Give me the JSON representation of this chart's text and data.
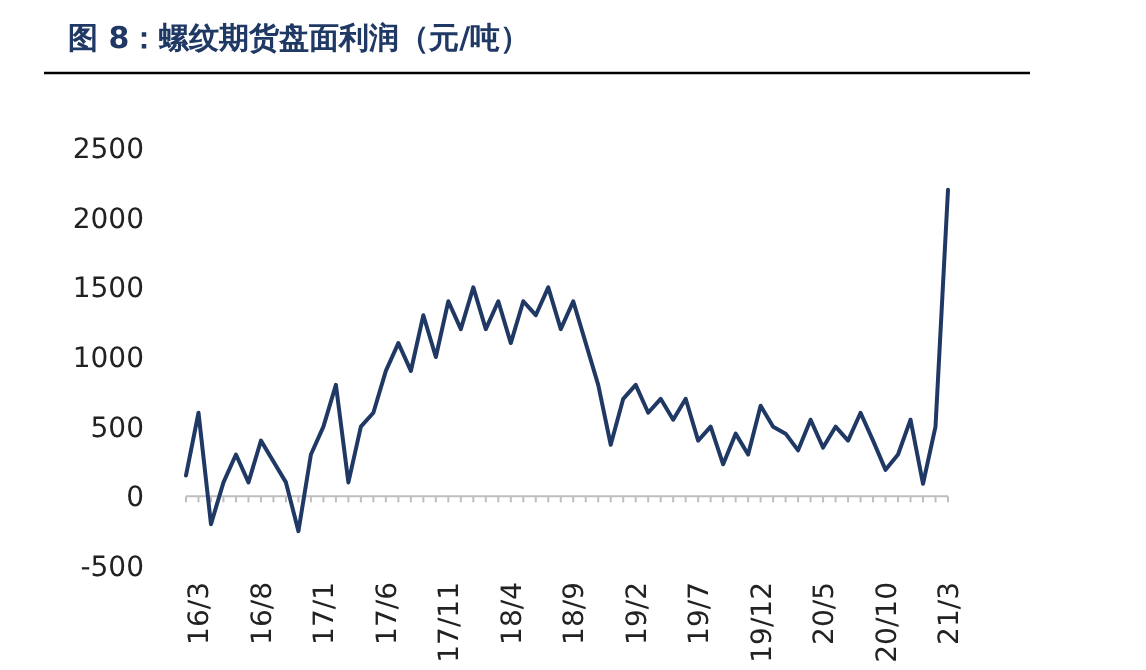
{
  "chart_data": {
    "type": "line",
    "title": "图 8：螺纹期货盘面利润（元/吨）",
    "categories": [
      null,
      "16/3",
      null,
      null,
      null,
      null,
      "16/8",
      null,
      null,
      null,
      null,
      "17/1",
      null,
      null,
      null,
      null,
      "17/6",
      null,
      null,
      null,
      null,
      "17/11",
      null,
      null,
      null,
      null,
      "18/4",
      null,
      null,
      null,
      null,
      "18/9",
      null,
      null,
      null,
      null,
      "19/2",
      null,
      null,
      null,
      null,
      "19/7",
      null,
      null,
      null,
      null,
      "19/12",
      null,
      null,
      null,
      null,
      "20/5",
      null,
      null,
      null,
      null,
      "20/10",
      null,
      null,
      null,
      null,
      "21/3"
    ],
    "series": [
      {
        "color": "#1f3864",
        "values": [
          150,
          600,
          -200,
          100,
          300,
          100,
          400,
          250,
          100,
          -250,
          300,
          500,
          800,
          100,
          500,
          600,
          900,
          1100,
          900,
          1300,
          1000,
          1400,
          1200,
          1500,
          1200,
          1400,
          1100,
          1400,
          1300,
          1500,
          1200,
          1400,
          1100,
          800,
          370,
          700,
          800,
          600,
          700,
          550,
          700,
          400,
          500,
          230,
          450,
          300,
          650,
          500,
          450,
          330,
          550,
          350,
          500,
          400,
          600,
          400,
          190,
          300,
          550,
          90,
          500,
          2200
        ]
      }
    ],
    "ylim": [
      -500,
      2500
    ],
    "yticks": [
      -500,
      0,
      500,
      1000,
      1500,
      2000,
      2500
    ],
    "marker": "none",
    "line_style": "solid"
  }
}
